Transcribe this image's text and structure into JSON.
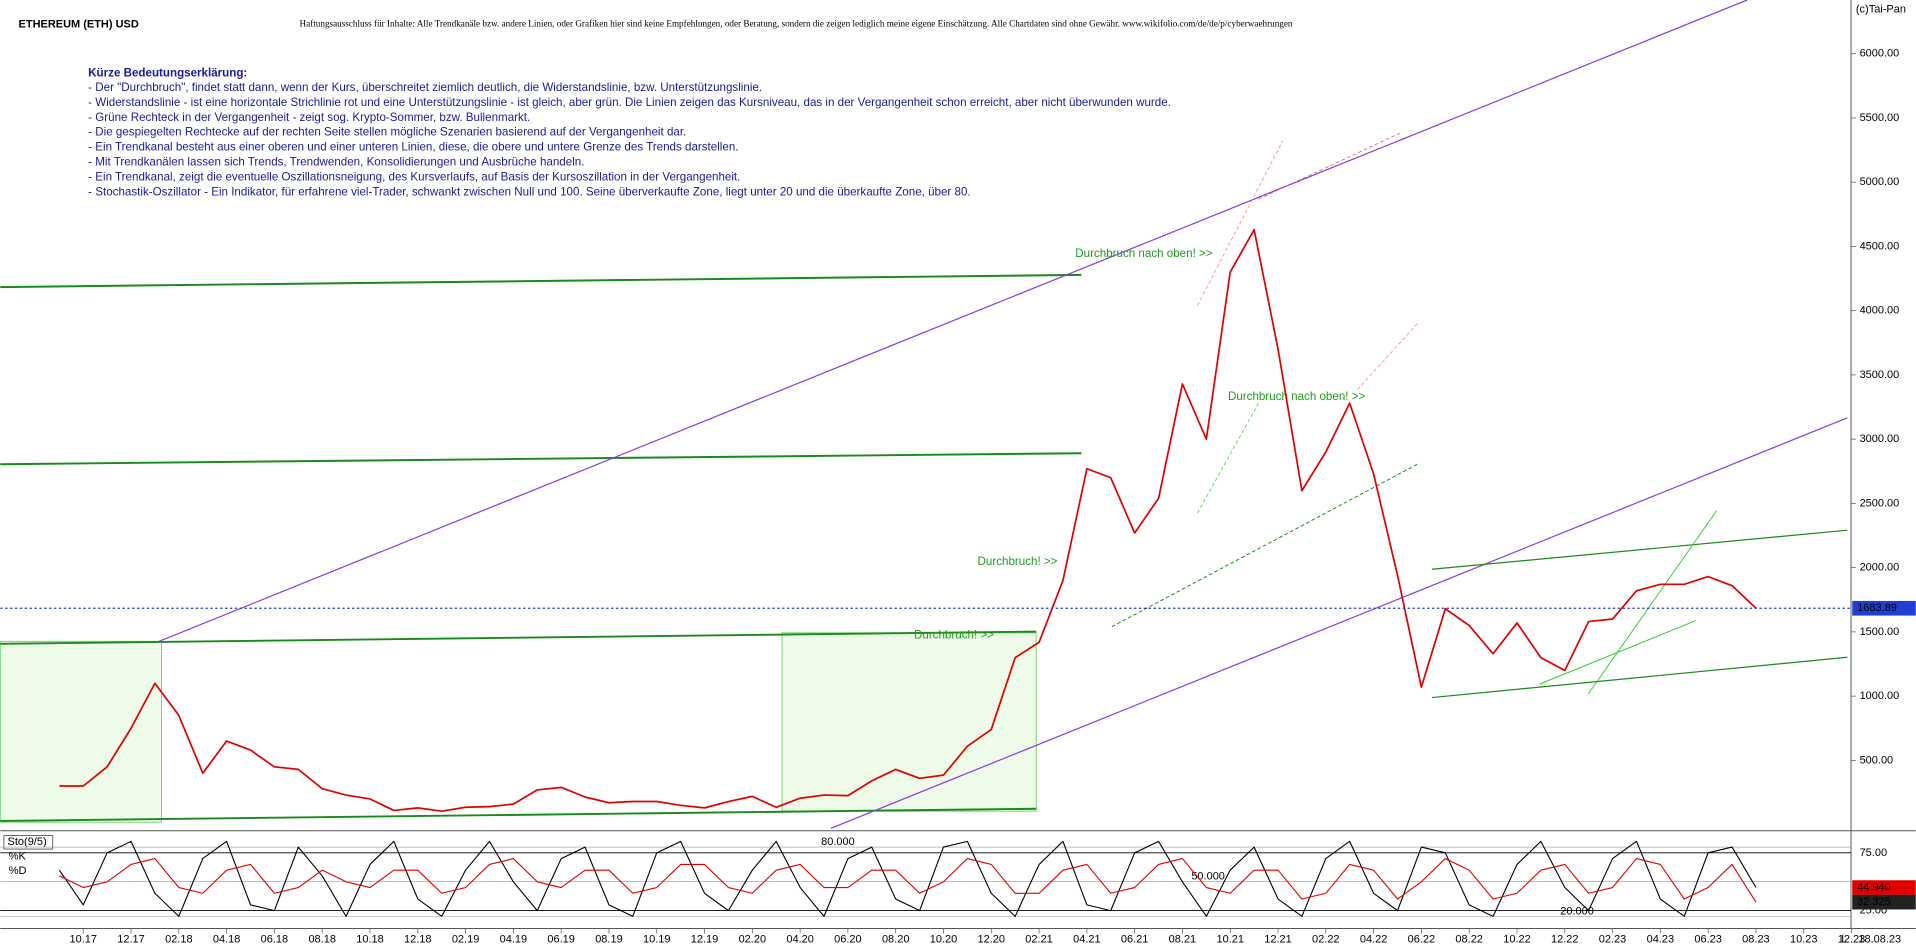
{
  "chart_data": {
    "type": "line",
    "title": "ETHEREUM (ETH) USD",
    "subtitle": "Haftungsausschluss für Inhalte: Alle Trendkanäle bzw. andere Linien, oder Grafiken hier sind keine Empfehlungen, oder Beratung, sondern die zeigen lediglich meine eigene Einschätzung. Alle Chartdaten sind ohne Gewähr. www.wikifolio.com/de/de/p/cyberwaehrungen",
    "copyright": "(c)Tai-Pan",
    "notes": {
      "heading": "Kürze Bedeutungserklärung:",
      "lines": [
        "- Der \"Durchbruch\", findet statt dann, wenn der Kurs, überschreitet ziemlich deutlich, die Widerstandslinie, bzw. Unterstützungslinie.",
        "- Widerstandslinie - ist eine horizontale Strichlinie rot und eine Unterstützungslinie - ist gleich, aber grün. Die Linien zeigen das Kursniveau, das in der Vergangenheit schon erreicht, aber nicht überwunden wurde.",
        "- Grüne Rechteck in der Vergangenheit - zeigt sog. Krypto-Sommer, bzw. Bullenmarkt.",
        "- Die gespiegelten Rechtecke auf der rechten Seite stellen mögliche Szenarien basierend auf der Vergangenheit dar.",
        "- Ein Trendkanal besteht aus einer oberen und einer unteren Linien, diese, die obere und untere Grenze des Trends darstellen.",
        "- Mit Trendkanälen lassen sich Trends, Trendwenden, Konsolidierungen und Ausbrüche handeln.",
        "- Ein Trendkanal, zeigt die eventuelle Oszillationsneigung, des Kursverlaufs, auf Basis der Kursoszillation in der Vergangenheit.",
        "- Stochastik-Oszillator - Ein Indikator, für erfahrene viel-Trader, schwankt zwischen Null und 100. Seine überverkaufte Zone, liegt unter 20 und die überkaufte Zone, über 80."
      ]
    },
    "annotations": [
      "Durchbruch nach oben! >>",
      "Durchbruch nach oben! >>",
      "Durchbruch! >>",
      "Durchbruch! >>"
    ],
    "categories": [
      null,
      "10.17",
      null,
      "12.17",
      null,
      "02.18",
      null,
      "04.18",
      null,
      "06.18",
      null,
      "08.18",
      null,
      "10.18",
      null,
      "12.18",
      null,
      "02.19",
      null,
      "04.19",
      null,
      "06.19",
      null,
      "08.19",
      null,
      "10.19",
      null,
      "12.19",
      null,
      "02.20",
      null,
      "04.20",
      null,
      "06.20",
      null,
      "08.20",
      null,
      "10.20",
      null,
      "12.20",
      null,
      "02.21",
      null,
      "04.21",
      null,
      "06.21",
      null,
      "08.21",
      null,
      "10.21",
      null,
      "12.21",
      null,
      "02.22",
      null,
      "04.22",
      null,
      "06.22",
      null,
      "08.22",
      null,
      "10.22",
      null,
      "12.22",
      null,
      "02.23",
      null,
      "04.23",
      null,
      "06.23",
      null,
      "08.23",
      null,
      "10.23",
      null,
      "12.23"
    ],
    "series": [
      {
        "color": "#e00000",
        "values": [
          300,
          300,
          450,
          750,
          1100,
          850,
          400,
          650,
          580,
          450,
          430,
          280,
          230,
          200,
          110,
          130,
          105,
          135,
          140,
          160,
          270,
          290,
          215,
          170,
          180,
          180,
          150,
          130,
          180,
          220,
          135,
          205,
          230,
          225,
          340,
          430,
          360,
          385,
          610,
          740,
          1300,
          1420,
          1900,
          2770,
          2700,
          2270,
          2540,
          3430,
          3000,
          4300,
          4630,
          3700,
          2600,
          2900,
          3280,
          2730,
          1940,
          1070,
          1680,
          1550,
          1330,
          1570,
          1300,
          1200,
          1580,
          1600,
          1820,
          1870,
          1870,
          1930,
          1860,
          1684,
          null,
          null,
          null,
          null
        ]
      }
    ],
    "current_price": 1683.89,
    "current_price_color": "#1f3fd0",
    "ylim": [
      0,
      6418
    ],
    "yticks": [
      {
        "value": 500,
        "label": "500.00"
      },
      {
        "value": 1000,
        "label": "1000.00"
      },
      {
        "value": 1500,
        "label": "1500.00"
      },
      {
        "value": 2000,
        "label": "2000.00"
      },
      {
        "value": 2500,
        "label": "2500.00"
      },
      {
        "value": 3000,
        "label": "3000.00"
      },
      {
        "value": 3500,
        "label": "3500.00"
      },
      {
        "value": 4000,
        "label": "4000.00"
      },
      {
        "value": 4500,
        "label": "4500.00"
      },
      {
        "value": 5000,
        "label": "5000.00"
      },
      {
        "value": 5500,
        "label": "5500.00"
      },
      {
        "value": 6000,
        "label": "6000.00"
      }
    ],
    "last_date": "18.08.23",
    "axis_mode": "L",
    "indicator": {
      "type": "line",
      "title": "Sto(9/5)",
      "ylim": [
        18,
        91
      ],
      "yticks": [
        {
          "value": 25,
          "label": "25.00"
        },
        {
          "value": 75,
          "label": "75.00"
        }
      ],
      "levels": [
        {
          "value": 80,
          "label": "80.000"
        },
        {
          "value": 50,
          "label": "50.000"
        },
        {
          "value": 20,
          "label": "20.000"
        }
      ],
      "series": [
        {
          "name": "%K",
          "color": "#000000",
          "current": {
            "value": 44.94,
            "label": "44.940"
          },
          "values": [
            60,
            30,
            75,
            85,
            40,
            20,
            70,
            85,
            30,
            25,
            80,
            55,
            20,
            65,
            85,
            35,
            20,
            60,
            85,
            50,
            25,
            70,
            80,
            30,
            20,
            75,
            85,
            40,
            25,
            60,
            85,
            45,
            20,
            70,
            80,
            35,
            25,
            80,
            85,
            40,
            20,
            65,
            85,
            30,
            25,
            75,
            85,
            50,
            20,
            60,
            80,
            35,
            20,
            70,
            85,
            40,
            25,
            80,
            75,
            30,
            20,
            65,
            85,
            45,
            25,
            70,
            85,
            35,
            20,
            75,
            80,
            44.94,
            null,
            null,
            null,
            null
          ]
        },
        {
          "name": "%D",
          "color": "#e00000",
          "current": 32.325,
          "values": [
            55,
            45,
            50,
            65,
            70,
            45,
            40,
            60,
            65,
            40,
            45,
            60,
            50,
            45,
            60,
            60,
            40,
            45,
            65,
            70,
            50,
            45,
            60,
            60,
            40,
            45,
            65,
            65,
            45,
            40,
            60,
            65,
            45,
            45,
            60,
            60,
            40,
            50,
            70,
            65,
            40,
            40,
            60,
            65,
            40,
            45,
            65,
            70,
            45,
            40,
            60,
            60,
            35,
            40,
            65,
            60,
            35,
            50,
            70,
            60,
            35,
            40,
            60,
            65,
            40,
            45,
            70,
            65,
            35,
            45,
            65,
            32.325,
            null,
            null,
            null,
            null
          ]
        }
      ]
    }
  }
}
